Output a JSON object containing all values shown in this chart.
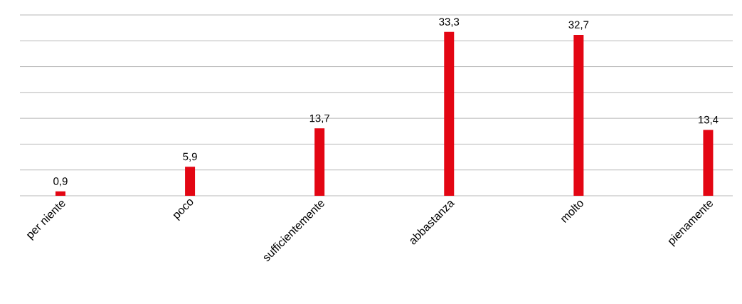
{
  "chart_data": {
    "type": "bar",
    "categories": [
      "per niente",
      "poco",
      "sufficientemente",
      "abbastanza",
      "molto",
      "pienamente"
    ],
    "values": [
      0.9,
      5.9,
      13.7,
      33.3,
      32.7,
      13.4
    ],
    "value_labels": [
      "0,9",
      "5,9",
      "13,7",
      "33,3",
      "32,7",
      "13,4"
    ],
    "color": "#e30613",
    "ylim": [
      0,
      36.75
    ],
    "yticks": [
      {
        "value": 0,
        "label": null
      },
      {
        "value": 5.25,
        "label": null
      },
      {
        "value": 10.5,
        "label": null
      },
      {
        "value": 15.75,
        "label": null
      },
      {
        "value": 21,
        "label": null
      },
      {
        "value": 26.25,
        "label": null
      },
      {
        "value": 31.5,
        "label": null
      },
      {
        "value": 36.75,
        "label": null
      }
    ],
    "grid": "y",
    "tick_labels": "x"
  }
}
